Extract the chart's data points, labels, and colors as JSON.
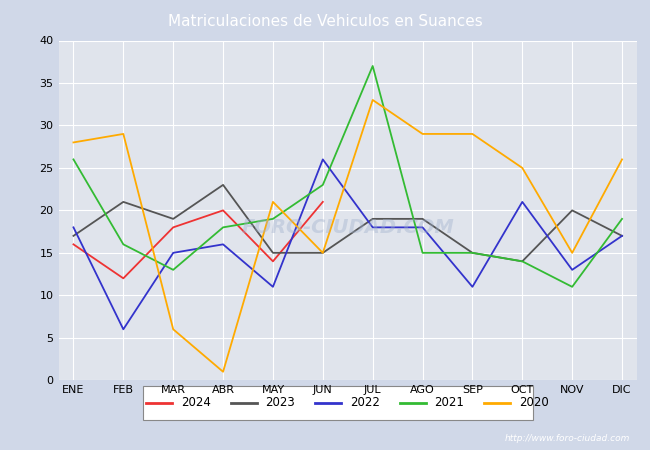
{
  "title": "Matriculaciones de Vehiculos en Suances",
  "months": [
    "ENE",
    "FEB",
    "MAR",
    "ABR",
    "MAY",
    "JUN",
    "JUL",
    "AGO",
    "SEP",
    "OCT",
    "NOV",
    "DIC"
  ],
  "series": {
    "2024": {
      "values": [
        16,
        12,
        18,
        20,
        14,
        21,
        null,
        null,
        null,
        null,
        null,
        null
      ],
      "color": "#ee3333",
      "label": "2024"
    },
    "2023": {
      "values": [
        17,
        21,
        19,
        23,
        15,
        15,
        19,
        19,
        15,
        14,
        20,
        17
      ],
      "color": "#555555",
      "label": "2023"
    },
    "2022": {
      "values": [
        18,
        6,
        15,
        16,
        11,
        26,
        18,
        18,
        11,
        21,
        13,
        17
      ],
      "color": "#3333cc",
      "label": "2022"
    },
    "2021": {
      "values": [
        26,
        16,
        13,
        18,
        19,
        23,
        37,
        15,
        15,
        14,
        11,
        19
      ],
      "color": "#33bb33",
      "label": "2021"
    },
    "2020": {
      "values": [
        28,
        29,
        6,
        1,
        21,
        15,
        33,
        29,
        29,
        25,
        15,
        26
      ],
      "color": "#ffaa00",
      "label": "2020"
    }
  },
  "ylim": [
    0,
    40
  ],
  "yticks": [
    0,
    5,
    10,
    15,
    20,
    25,
    30,
    35,
    40
  ],
  "fig_bg_color": "#d0d8e8",
  "plot_bg_color": "#e0e4ec",
  "header_color": "#5577bb",
  "title_color": "white",
  "grid_color": "white",
  "url": "http://www.foro-ciudad.com",
  "legend_order": [
    "2024",
    "2023",
    "2022",
    "2021",
    "2020"
  ],
  "figwidth": 6.5,
  "figheight": 4.5,
  "dpi": 100
}
